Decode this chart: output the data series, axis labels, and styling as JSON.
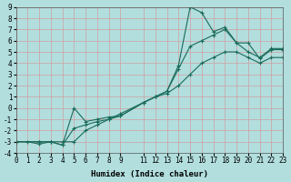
{
  "xlabel": "Humidex (Indice chaleur)",
  "background_color": "#b2dede",
  "grid_color": "#d0a0a0",
  "line_color": "#1a6b5a",
  "xlim": [
    0,
    23
  ],
  "ylim": [
    -4,
    9
  ],
  "xticks": [
    0,
    1,
    2,
    3,
    4,
    5,
    6,
    7,
    8,
    9,
    11,
    12,
    13,
    14,
    15,
    16,
    17,
    18,
    19,
    20,
    21,
    22,
    23
  ],
  "yticks": [
    -4,
    -3,
    -2,
    -1,
    0,
    1,
    2,
    3,
    4,
    5,
    6,
    7,
    8,
    9
  ],
  "series1_x": [
    0,
    1,
    2,
    3,
    4,
    5,
    6,
    7,
    8,
    9,
    11,
    12,
    13,
    14,
    15,
    16,
    17,
    18,
    19,
    20,
    21,
    22,
    23
  ],
  "series1_y": [
    -3,
    -3,
    -3.2,
    -3,
    -3.3,
    0,
    -1.2,
    -1,
    -0.8,
    -0.7,
    0.5,
    1,
    1.5,
    3.8,
    9,
    8.5,
    6.8,
    7.2,
    5.8,
    5.8,
    4.4,
    5.2,
    5.2
  ],
  "series2_x": [
    0,
    2,
    3,
    4,
    5,
    6,
    7,
    8,
    9,
    11,
    12,
    13,
    14,
    15,
    16,
    17,
    18,
    19,
    20,
    21,
    22,
    23
  ],
  "series2_y": [
    -3,
    -3,
    -3,
    -3.3,
    -1.8,
    -1.5,
    -1.2,
    -1,
    -0.7,
    0.5,
    1,
    1.5,
    3.5,
    5.5,
    6,
    6.5,
    7,
    5.8,
    5,
    4.5,
    5.3,
    5.3
  ],
  "series3_x": [
    0,
    2,
    3,
    4,
    5,
    6,
    7,
    8,
    9,
    11,
    12,
    13,
    14,
    15,
    16,
    17,
    18,
    19,
    20,
    21,
    22,
    23
  ],
  "series3_y": [
    -3,
    -3,
    -3,
    -3,
    -3,
    -2,
    -1.5,
    -1,
    -0.5,
    0.5,
    1,
    1.3,
    2,
    3,
    4,
    4.5,
    5,
    5,
    4.5,
    4,
    4.5,
    4.5
  ]
}
